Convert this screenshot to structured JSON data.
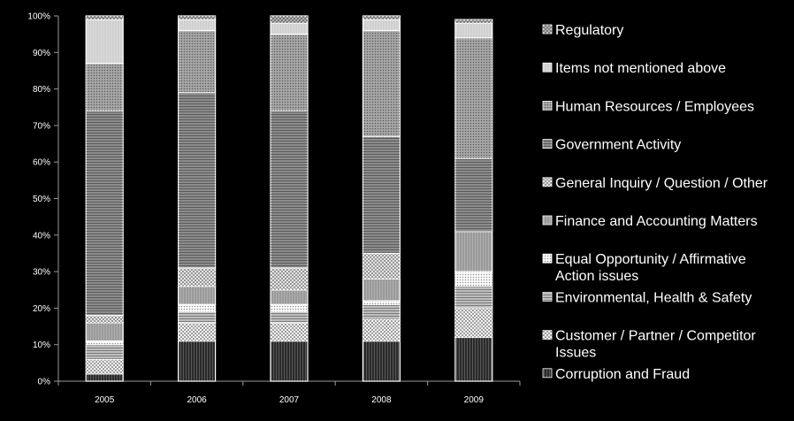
{
  "chart_data": {
    "type": "bar",
    "stacked": true,
    "normalized_percent": true,
    "categories": [
      "2005",
      "2006",
      "2007",
      "2008",
      "2009"
    ],
    "y_ticks": [
      "0%",
      "10%",
      "20%",
      "30%",
      "40%",
      "50%",
      "60%",
      "70%",
      "80%",
      "90%",
      "100%"
    ],
    "ylim": [
      0,
      100
    ],
    "grid": false,
    "legend_position": "right",
    "series": [
      {
        "name": "Corruption and Fraud",
        "values": [
          2,
          11,
          11,
          11,
          12
        ],
        "color": "#2a2a2a"
      },
      {
        "name": "Customer / Partner / Competitor Issues",
        "values": [
          4,
          5,
          5,
          6,
          8
        ],
        "color": "#f4f4f4"
      },
      {
        "name": "Environmental, Health & Safety",
        "values": [
          4,
          3,
          3,
          4,
          6
        ],
        "color": "#bdbdbd"
      },
      {
        "name": "Equal Opportunity / Affirmative Action issues",
        "values": [
          1,
          2,
          2,
          1,
          4
        ],
        "color": "#ffffff"
      },
      {
        "name": "Finance and Accounting Matters",
        "values": [
          5,
          5,
          4,
          6,
          11
        ],
        "color": "#9a9a9a"
      },
      {
        "name": "General Inquiry / Question / Other",
        "values": [
          2,
          5,
          6,
          7,
          0
        ],
        "color": "#e6e6e6"
      },
      {
        "name": "Government Activity",
        "values": [
          56,
          48,
          43,
          32,
          20
        ],
        "color": "#8c8c8c"
      },
      {
        "name": "Human Resources / Employees",
        "values": [
          13,
          17,
          21,
          29,
          33
        ],
        "color": "#a8a8a8"
      },
      {
        "name": "Items not mentioned above",
        "values": [
          12,
          3,
          3,
          3,
          4
        ],
        "color": "#d0d0d0"
      },
      {
        "name": "Regulatory",
        "values": [
          1,
          1,
          2,
          1,
          1
        ],
        "color": "#b4b4b4"
      }
    ],
    "legend_lines": [
      [
        "Regulatory"
      ],
      [
        "Items not mentioned above"
      ],
      [
        "Human Resources / Employees"
      ],
      [
        "Government Activity"
      ],
      [
        "General Inquiry / Question / Other"
      ],
      [
        "Finance and Accounting Matters"
      ],
      [
        "Equal Opportunity / Affirmative",
        "Action issues"
      ],
      [
        "Environmental, Health & Safety"
      ],
      [
        "Customer / Partner / Competitor",
        "Issues"
      ],
      [
        "Corruption and Fraud"
      ]
    ]
  }
}
